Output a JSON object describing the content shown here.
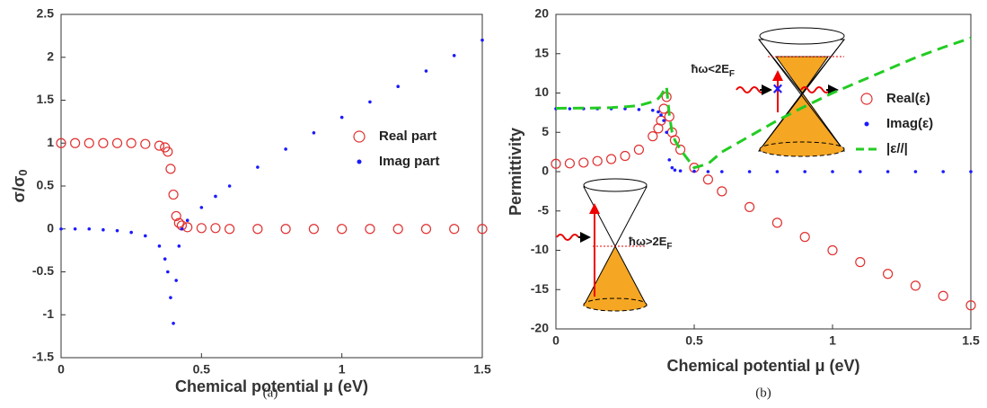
{
  "chart_data": [
    {
      "type": "scatter",
      "caption": "(a)",
      "xlabel": "Chemical potential μ (eV)",
      "ylabel": "σ/σ",
      "ylabel_sub": "0",
      "xlim": [
        0,
        1.5
      ],
      "ylim": [
        -1.5,
        2.5
      ],
      "xticks": [
        0,
        0.5,
        1,
        1.5
      ],
      "yticks": [
        -1.5,
        -1,
        -0.5,
        0,
        0.5,
        1,
        1.5,
        2,
        2.5
      ],
      "x": [
        0,
        0.05,
        0.1,
        0.15,
        0.2,
        0.25,
        0.3,
        0.35,
        0.37,
        0.38,
        0.39,
        0.4,
        0.41,
        0.42,
        0.43,
        0.45,
        0.5,
        0.55,
        0.6,
        0.7,
        0.8,
        0.9,
        1.0,
        1.1,
        1.2,
        1.3,
        1.4,
        1.5
      ],
      "series": [
        {
          "name": "Real part",
          "color": "#e03030",
          "style": "open-circle",
          "values": [
            1,
            1,
            1,
            1,
            1,
            1,
            0.99,
            0.97,
            0.95,
            0.9,
            0.7,
            0.4,
            0.15,
            0.07,
            0.04,
            0.02,
            0.01,
            0.01,
            0,
            0,
            0,
            0,
            0,
            0,
            0,
            0,
            0,
            0
          ]
        },
        {
          "name": "Imag part",
          "color": "#1a1aff",
          "style": "dot",
          "values": [
            0,
            0,
            0,
            -0.01,
            -0.02,
            -0.04,
            -0.08,
            -0.2,
            -0.35,
            -0.5,
            -0.8,
            -1.1,
            -0.6,
            -0.2,
            0,
            0.1,
            0.25,
            0.38,
            0.5,
            0.72,
            0.93,
            1.12,
            1.3,
            1.48,
            1.66,
            1.84,
            2.02,
            2.2
          ]
        }
      ]
    },
    {
      "type": "scatter",
      "caption": "(b)",
      "xlabel": "Chemical potential μ (eV)",
      "ylabel": "Permittivity",
      "xlim": [
        0,
        1.5
      ],
      "ylim": [
        -20,
        20
      ],
      "xticks": [
        0,
        0.5,
        1,
        1.5
      ],
      "yticks": [
        -20,
        -15,
        -10,
        -5,
        0,
        5,
        10,
        15,
        20
      ],
      "x": [
        0,
        0.05,
        0.1,
        0.15,
        0.2,
        0.25,
        0.3,
        0.35,
        0.37,
        0.38,
        0.39,
        0.4,
        0.41,
        0.42,
        0.43,
        0.45,
        0.5,
        0.55,
        0.6,
        0.7,
        0.8,
        0.9,
        1.0,
        1.1,
        1.2,
        1.3,
        1.4,
        1.5
      ],
      "series": [
        {
          "name": "Real(ε)",
          "color": "#e03030",
          "style": "open-circle",
          "values": [
            1,
            1.05,
            1.15,
            1.35,
            1.6,
            2,
            2.8,
            4.5,
            5.5,
            6.5,
            8,
            9.5,
            7,
            5,
            4,
            2.8,
            0.5,
            -1,
            -2.5,
            -4.5,
            -6.5,
            -8.3,
            -10,
            -11.5,
            -13,
            -14.5,
            -15.8,
            -17
          ]
        },
        {
          "name": "Imag(ε)",
          "color": "#1a1aff",
          "style": "dot",
          "values": [
            8,
            8,
            8,
            8,
            8,
            8,
            7.9,
            7.8,
            7.6,
            7.2,
            6.5,
            5,
            1.5,
            0.5,
            0.2,
            0.1,
            0.05,
            0,
            0,
            0,
            0,
            0,
            0,
            0,
            0,
            0,
            0,
            0
          ]
        },
        {
          "name": "|ε//|",
          "color": "#22cc22",
          "style": "dashed-line",
          "values": [
            8.06,
            8.07,
            8.08,
            8.1,
            8.15,
            8.25,
            8.4,
            8.9,
            9.3,
            9.7,
            10.3,
            10.8,
            7.2,
            5,
            4,
            2.8,
            0.5,
            1,
            2.5,
            4.5,
            6.5,
            8.3,
            10,
            11.5,
            13,
            14.5,
            15.8,
            17
          ]
        }
      ],
      "annotations": [
        {
          "text": "ħω<2E",
          "sub": "F"
        },
        {
          "text": "ħω>2E",
          "sub": "F"
        }
      ]
    }
  ]
}
